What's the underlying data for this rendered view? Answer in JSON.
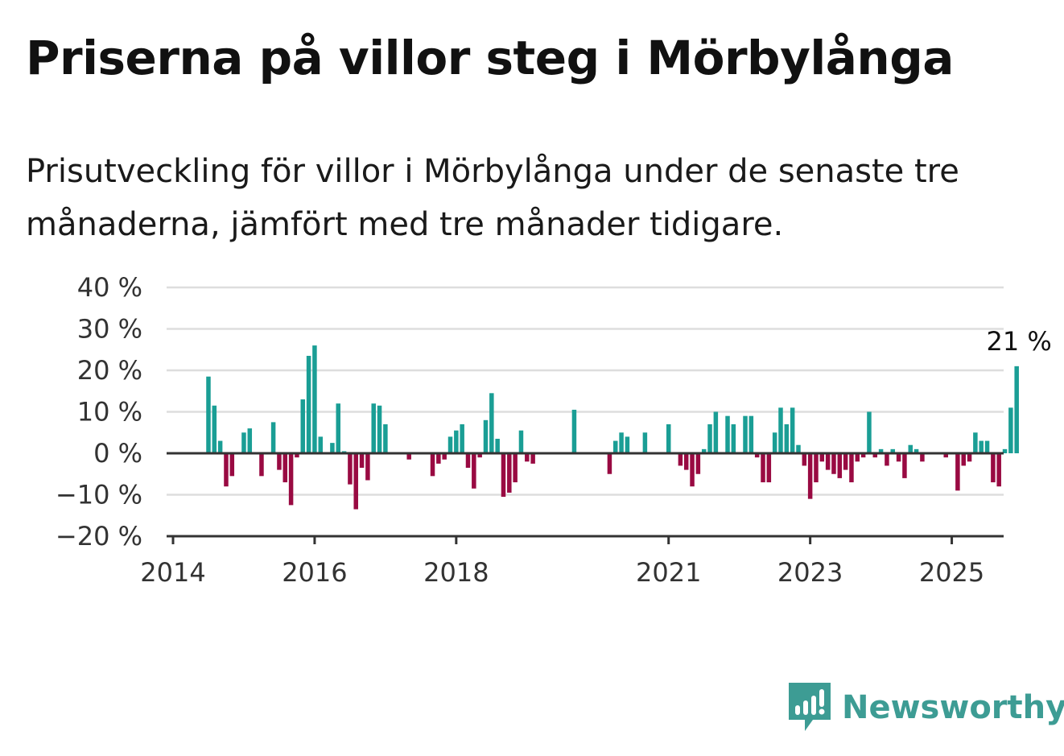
{
  "title": "Priserna på villor steg i Mörbylånga",
  "subtitle": "Prisutveckling för villor i Mörbylånga under de senaste tre månaderna, jämfört med tre månader tidigare.",
  "brand": {
    "name": "Newsworthy",
    "icon": "newsworthy-bar-chart-icon",
    "color": "#3d9c94"
  },
  "colors": {
    "positive": "#1a9e95",
    "negative": "#990a42",
    "grid": "#dddddd",
    "axis": "#333333"
  },
  "chart_data": {
    "type": "bar",
    "x_start": "2014-01",
    "x_unit": "month",
    "ylim": [
      -20,
      40
    ],
    "yticks": [
      -20,
      -10,
      0,
      10,
      20,
      30,
      40
    ],
    "ytick_labels": [
      "−20 %",
      "−10 %",
      "0 %",
      "10 %",
      "20 %",
      "30 %",
      "40 %"
    ],
    "xticks": [
      {
        "date": "2014-01",
        "label": "2014"
      },
      {
        "date": "2016-01",
        "label": "2016"
      },
      {
        "date": "2018-01",
        "label": "2018"
      },
      {
        "date": "2021-01",
        "label": "2021"
      },
      {
        "date": "2023-01",
        "label": "2023"
      },
      {
        "date": "2025-01",
        "label": "2025"
      }
    ],
    "grid": true,
    "last_value_label": "21 %",
    "series": [
      {
        "values": [
          null,
          null,
          null,
          null,
          null,
          null,
          18.5,
          11.5,
          3,
          -8,
          -5.5,
          null,
          5,
          6,
          null,
          -5.5,
          null,
          7.5,
          -4,
          -7,
          -12.5,
          -1,
          13,
          23.5,
          26,
          4,
          null,
          2.5,
          12,
          0.5,
          -7.5,
          -13.5,
          -3.5,
          -6.5,
          12,
          11.5,
          7,
          null,
          null,
          null,
          -1.5,
          null,
          null,
          null,
          -5.5,
          -2.5,
          -1.5,
          4,
          5.5,
          7,
          -3.5,
          -8.5,
          -1,
          8,
          14.5,
          3.5,
          -10.5,
          -9.5,
          -7,
          5.5,
          -2,
          -2.5,
          null,
          null,
          null,
          null,
          null,
          null,
          10.5,
          null,
          null,
          null,
          null,
          null,
          -5,
          3,
          5,
          4,
          null,
          null,
          5,
          null,
          null,
          null,
          7,
          null,
          -3,
          -4,
          -8,
          -5,
          1,
          7,
          10,
          null,
          9,
          7,
          null,
          9,
          9,
          -1,
          -7,
          -7,
          5,
          11,
          7,
          11,
          2,
          -3,
          -11,
          -7,
          -2,
          -4,
          -5,
          -6,
          -4,
          -7,
          -2,
          -1,
          10,
          -1,
          1,
          -3,
          1,
          -2,
          -6,
          2,
          1,
          -2,
          null,
          null,
          null,
          -1,
          null,
          -9,
          -3,
          -2,
          5,
          3,
          3,
          -7,
          -8,
          1,
          11,
          21
        ]
      }
    ]
  }
}
